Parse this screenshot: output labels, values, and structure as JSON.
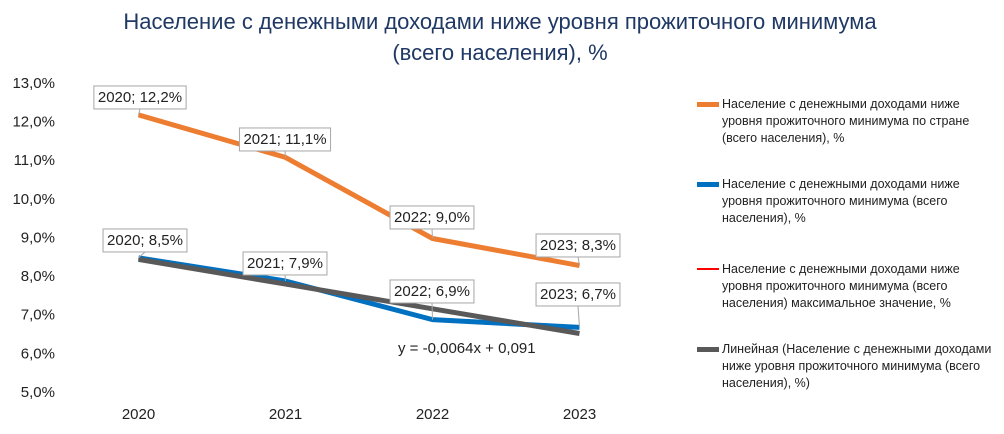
{
  "chart_data": {
    "type": "line",
    "title": "Население с денежными доходами ниже уровня прожиточного минимума (всего населения), %",
    "categories": [
      "2020",
      "2021",
      "2022",
      "2023"
    ],
    "series": [
      {
        "name": "Население с денежными доходами ниже уровня прожиточного минимума по стране (всего населения), %",
        "color": "#ed7d31",
        "values": [
          12.2,
          11.1,
          9.0,
          8.3
        ],
        "value_labels": [
          "2020; 12,2%",
          "2021; 11,1%",
          "2022; 9,0%",
          "2023; 8,3%"
        ]
      },
      {
        "name": "Население с денежными доходами ниже уровня прожиточного минимума (всего населения), %",
        "color": "#0070c0",
        "values": [
          8.5,
          7.9,
          6.9,
          6.7
        ],
        "value_labels": [
          "2020; 8,5%",
          "2021; 7,9%",
          "2022; 6,9%",
          "2023; 6,7%"
        ]
      },
      {
        "name": "Население с денежными доходами ниже уровня прожиточного минимума (всего населения) максимальное значение, %",
        "color": "#ff0000",
        "values": [
          null,
          null,
          null,
          null
        ]
      },
      {
        "name": "Линейная (Население с денежными доходами ниже уровня прожиточного минимума (всего населения), %)",
        "color": "#595959",
        "values": [
          8.46,
          7.82,
          7.18,
          6.54
        ]
      }
    ],
    "annotations": [
      "y = -0,0064x + 0,091"
    ],
    "ylim": [
      5,
      13
    ],
    "yticks": [
      {
        "value": 5,
        "label": "5,0%"
      },
      {
        "value": 6,
        "label": "6,0%"
      },
      {
        "value": 7,
        "label": "7,0%"
      },
      {
        "value": 8,
        "label": "8,0%"
      },
      {
        "value": 9,
        "label": "9,0%"
      },
      {
        "value": 10,
        "label": "10,0%"
      },
      {
        "value": 11,
        "label": "11,0%"
      },
      {
        "value": 12,
        "label": "12,0%"
      },
      {
        "value": 13,
        "label": "13,0%"
      }
    ],
    "grid": false,
    "legend": "right"
  }
}
